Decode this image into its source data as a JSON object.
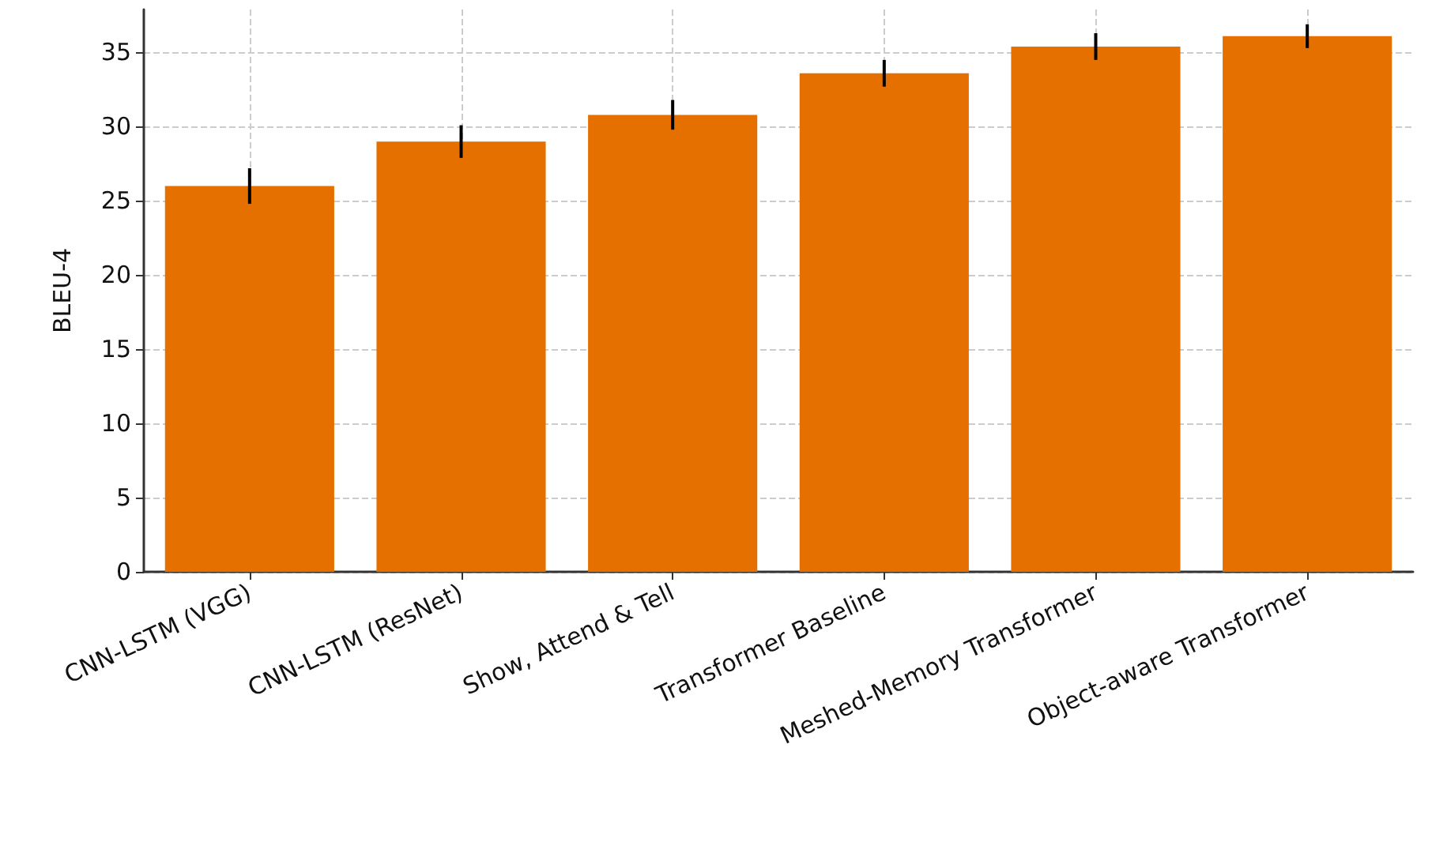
{
  "chart_data": {
    "type": "bar",
    "ylabel": "BLEU-4",
    "categories": [
      "CNN-LSTM (VGG)",
      "CNN-LSTM (ResNet)",
      "Show, Attend & Tell",
      "Transformer Baseline",
      "Meshed-Memory Transformer",
      "Object-aware Transformer"
    ],
    "values": [
      26.0,
      29.0,
      30.8,
      33.6,
      35.4,
      36.1
    ],
    "errors": [
      1.2,
      1.1,
      1.0,
      0.9,
      0.9,
      0.8
    ],
    "color": "#e57000",
    "ylim": [
      0,
      37.9
    ],
    "yticks": [
      0,
      5,
      10,
      15,
      20,
      25,
      30,
      35
    ],
    "grid": true
  }
}
